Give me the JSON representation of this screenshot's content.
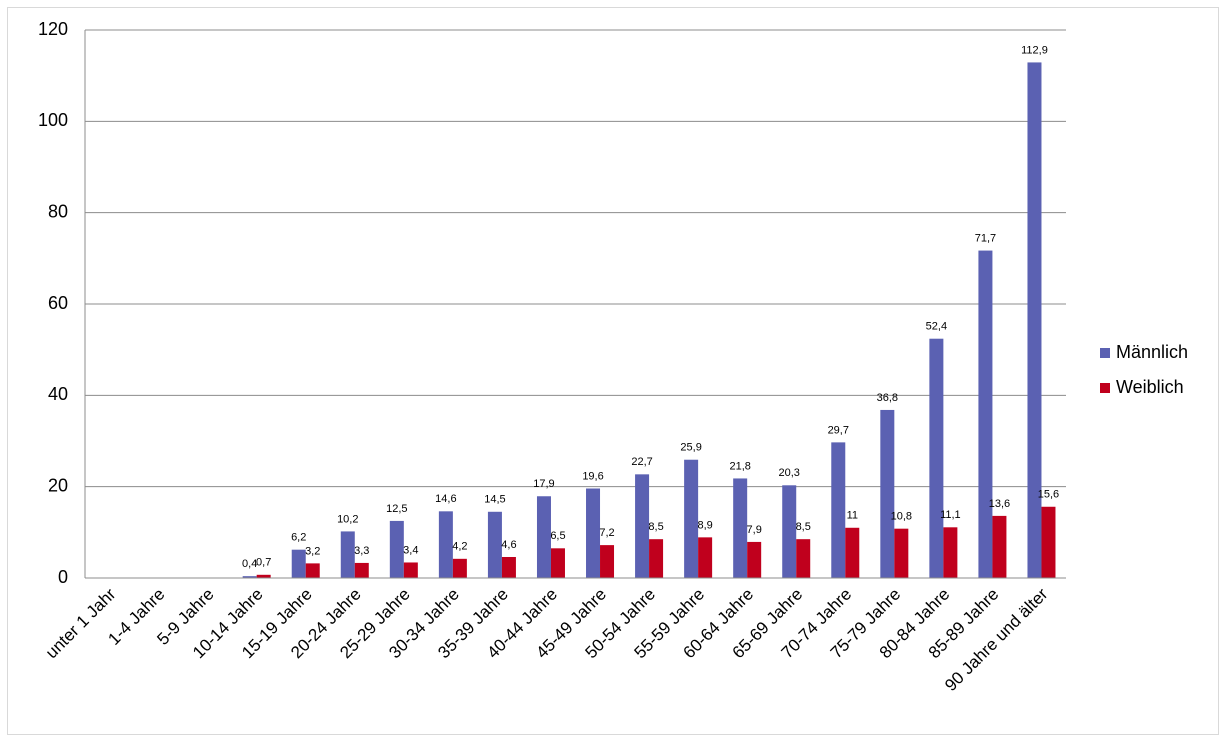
{
  "chart_data": {
    "type": "bar",
    "categories": [
      "unter 1 Jahr",
      "1-4 Jahre",
      "5-9 Jahre",
      "10-14 Jahre",
      "15-19 Jahre",
      "20-24 Jahre",
      "25-29 Jahre",
      "30-34 Jahre",
      "35-39 Jahre",
      "40-44 Jahre",
      "45-49 Jahre",
      "50-54 Jahre",
      "55-59 Jahre",
      "60-64 Jahre",
      "65-69 Jahre",
      "70-74 Jahre",
      "75-79 Jahre",
      "80-84 Jahre",
      "85-89 Jahre",
      "90 Jahre und älter"
    ],
    "series": [
      {
        "name": "Männlich",
        "color": "#5b61b2",
        "values": [
          null,
          null,
          null,
          0.4,
          6.2,
          10.2,
          12.5,
          14.6,
          14.5,
          17.9,
          19.6,
          22.7,
          25.9,
          21.8,
          20.3,
          29.7,
          36.8,
          52.4,
          71.7,
          112.9
        ],
        "value_labels": [
          null,
          null,
          null,
          "0,4",
          "6,2",
          "10,2",
          "12,5",
          "14,6",
          "14,5",
          "17,9",
          "19,6",
          "22,7",
          "25,9",
          "21,8",
          "20,3",
          "29,7",
          "36,8",
          "52,4",
          "71,7",
          "112,9"
        ]
      },
      {
        "name": "Weiblich",
        "color": "#c0001d",
        "values": [
          null,
          null,
          null,
          0.7,
          3.2,
          3.3,
          3.4,
          4.2,
          4.6,
          6.5,
          7.2,
          8.5,
          8.9,
          7.9,
          8.5,
          11,
          10.8,
          11.1,
          13.6,
          15.6
        ],
        "value_labels": [
          null,
          null,
          null,
          "0,7",
          "3,2",
          "3,3",
          "3,4",
          "4,2",
          "4,6",
          "6,5",
          "7,2",
          "8,5",
          "8,9",
          "7,9",
          "8,5",
          "11",
          "10,8",
          "11,1",
          "13,6",
          "15,6"
        ]
      }
    ],
    "ylim": [
      0,
      120
    ],
    "yticks": [
      0,
      20,
      40,
      60,
      80,
      100,
      120
    ],
    "grid": true,
    "legend": "right"
  }
}
